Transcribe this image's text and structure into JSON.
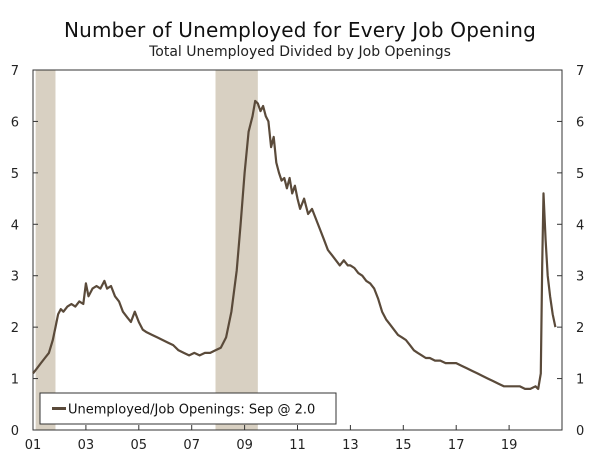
{
  "chart_data": {
    "type": "line",
    "title": "Number of Unemployed for Every Job Opening",
    "subtitle": "Total Unemployed Divided by Job Openings",
    "xlabel": "",
    "ylabel": "",
    "x_start": 2001.0,
    "x_end": 2021.0,
    "ylim": [
      0,
      7
    ],
    "y_ticks": [
      0,
      1,
      2,
      3,
      4,
      5,
      6,
      7
    ],
    "x_ticks": [
      {
        "value": 2001,
        "label": "01"
      },
      {
        "value": 2003,
        "label": "03"
      },
      {
        "value": 2005,
        "label": "05"
      },
      {
        "value": 2007,
        "label": "07"
      },
      {
        "value": 2009,
        "label": "09"
      },
      {
        "value": 2011,
        "label": "11"
      },
      {
        "value": 2013,
        "label": "13"
      },
      {
        "value": 2015,
        "label": "15"
      },
      {
        "value": 2017,
        "label": "17"
      },
      {
        "value": 2019,
        "label": "19"
      }
    ],
    "recessions": [
      {
        "start": 2001.1,
        "end": 2001.85
      },
      {
        "start": 2007.9,
        "end": 2009.5
      }
    ],
    "recession_color": "#d8d0c2",
    "line_color": "#5a4a3a",
    "legend": {
      "label": "Unemployed/Job Openings: Sep @ 2.0",
      "position": "bottom-left"
    },
    "series": [
      {
        "name": "Unemployed/Job Openings",
        "points": [
          [
            2001.0,
            1.1
          ],
          [
            2001.15,
            1.2
          ],
          [
            2001.3,
            1.3
          ],
          [
            2001.45,
            1.4
          ],
          [
            2001.6,
            1.5
          ],
          [
            2001.75,
            1.75
          ],
          [
            2001.85,
            2.0
          ],
          [
            2001.95,
            2.25
          ],
          [
            2002.05,
            2.35
          ],
          [
            2002.15,
            2.3
          ],
          [
            2002.3,
            2.4
          ],
          [
            2002.45,
            2.45
          ],
          [
            2002.6,
            2.4
          ],
          [
            2002.75,
            2.5
          ],
          [
            2002.9,
            2.45
          ],
          [
            2003.0,
            2.85
          ],
          [
            2003.1,
            2.6
          ],
          [
            2003.25,
            2.75
          ],
          [
            2003.4,
            2.8
          ],
          [
            2003.55,
            2.75
          ],
          [
            2003.7,
            2.9
          ],
          [
            2003.8,
            2.75
          ],
          [
            2003.95,
            2.8
          ],
          [
            2004.1,
            2.6
          ],
          [
            2004.25,
            2.5
          ],
          [
            2004.4,
            2.3
          ],
          [
            2004.55,
            2.2
          ],
          [
            2004.7,
            2.1
          ],
          [
            2004.85,
            2.3
          ],
          [
            2005.0,
            2.1
          ],
          [
            2005.15,
            1.95
          ],
          [
            2005.3,
            1.9
          ],
          [
            2005.5,
            1.85
          ],
          [
            2005.7,
            1.8
          ],
          [
            2005.9,
            1.75
          ],
          [
            2006.1,
            1.7
          ],
          [
            2006.3,
            1.65
          ],
          [
            2006.5,
            1.55
          ],
          [
            2006.7,
            1.5
          ],
          [
            2006.9,
            1.45
          ],
          [
            2007.1,
            1.5
          ],
          [
            2007.3,
            1.45
          ],
          [
            2007.5,
            1.5
          ],
          [
            2007.7,
            1.5
          ],
          [
            2007.9,
            1.55
          ],
          [
            2008.1,
            1.6
          ],
          [
            2008.3,
            1.8
          ],
          [
            2008.5,
            2.3
          ],
          [
            2008.7,
            3.1
          ],
          [
            2008.85,
            4.0
          ],
          [
            2009.0,
            5.0
          ],
          [
            2009.15,
            5.8
          ],
          [
            2009.3,
            6.1
          ],
          [
            2009.4,
            6.4
          ],
          [
            2009.5,
            6.35
          ],
          [
            2009.6,
            6.2
          ],
          [
            2009.7,
            6.3
          ],
          [
            2009.8,
            6.1
          ],
          [
            2009.9,
            6.0
          ],
          [
            2010.0,
            5.5
          ],
          [
            2010.1,
            5.7
          ],
          [
            2010.2,
            5.2
          ],
          [
            2010.3,
            5.0
          ],
          [
            2010.4,
            4.85
          ],
          [
            2010.5,
            4.9
          ],
          [
            2010.6,
            4.7
          ],
          [
            2010.7,
            4.9
          ],
          [
            2010.8,
            4.6
          ],
          [
            2010.9,
            4.75
          ],
          [
            2011.0,
            4.5
          ],
          [
            2011.1,
            4.3
          ],
          [
            2011.25,
            4.5
          ],
          [
            2011.4,
            4.2
          ],
          [
            2011.55,
            4.3
          ],
          [
            2011.7,
            4.1
          ],
          [
            2011.85,
            3.9
          ],
          [
            2012.0,
            3.7
          ],
          [
            2012.15,
            3.5
          ],
          [
            2012.3,
            3.4
          ],
          [
            2012.45,
            3.3
          ],
          [
            2012.6,
            3.2
          ],
          [
            2012.75,
            3.3
          ],
          [
            2012.9,
            3.2
          ],
          [
            2013.0,
            3.2
          ],
          [
            2013.15,
            3.15
          ],
          [
            2013.3,
            3.05
          ],
          [
            2013.45,
            3.0
          ],
          [
            2013.6,
            2.9
          ],
          [
            2013.75,
            2.85
          ],
          [
            2013.9,
            2.75
          ],
          [
            2014.05,
            2.55
          ],
          [
            2014.2,
            2.3
          ],
          [
            2014.35,
            2.15
          ],
          [
            2014.5,
            2.05
          ],
          [
            2014.65,
            1.95
          ],
          [
            2014.8,
            1.85
          ],
          [
            2014.95,
            1.8
          ],
          [
            2015.1,
            1.75
          ],
          [
            2015.25,
            1.65
          ],
          [
            2015.4,
            1.55
          ],
          [
            2015.55,
            1.5
          ],
          [
            2015.7,
            1.45
          ],
          [
            2015.85,
            1.4
          ],
          [
            2016.0,
            1.4
          ],
          [
            2016.2,
            1.35
          ],
          [
            2016.4,
            1.35
          ],
          [
            2016.6,
            1.3
          ],
          [
            2016.8,
            1.3
          ],
          [
            2017.0,
            1.3
          ],
          [
            2017.2,
            1.25
          ],
          [
            2017.4,
            1.2
          ],
          [
            2017.6,
            1.15
          ],
          [
            2017.8,
            1.1
          ],
          [
            2018.0,
            1.05
          ],
          [
            2018.2,
            1.0
          ],
          [
            2018.4,
            0.95
          ],
          [
            2018.6,
            0.9
          ],
          [
            2018.8,
            0.85
          ],
          [
            2019.0,
            0.85
          ],
          [
            2019.2,
            0.85
          ],
          [
            2019.4,
            0.85
          ],
          [
            2019.6,
            0.8
          ],
          [
            2019.8,
            0.8
          ],
          [
            2020.0,
            0.85
          ],
          [
            2020.1,
            0.8
          ],
          [
            2020.2,
            1.1
          ],
          [
            2020.25,
            3.2
          ],
          [
            2020.3,
            4.6
          ],
          [
            2020.38,
            3.7
          ],
          [
            2020.46,
            3.0
          ],
          [
            2020.55,
            2.6
          ],
          [
            2020.65,
            2.25
          ],
          [
            2020.75,
            2.0
          ]
        ]
      }
    ]
  }
}
